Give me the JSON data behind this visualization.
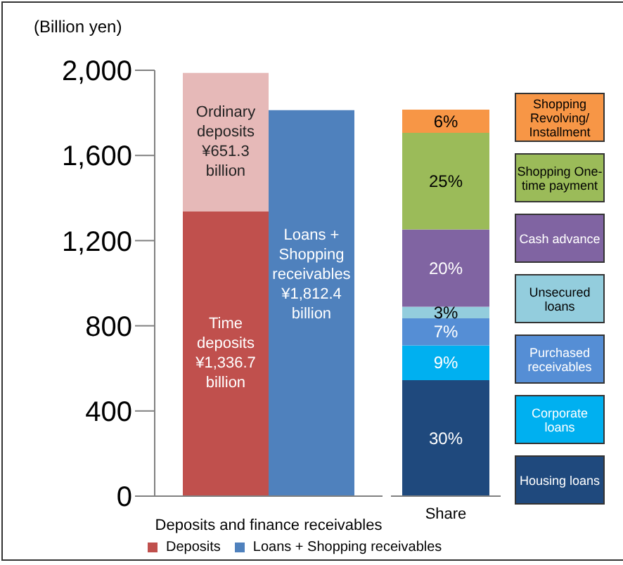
{
  "chart_data": [
    {
      "type": "bar",
      "ylabel": "(Billion yen)",
      "xlabel": "Deposits and finance receivables",
      "categories": [
        null,
        null
      ],
      "stacked": true,
      "ylim": [
        0,
        2000
      ],
      "yticks": [
        {
          "value": 0,
          "label": "0"
        },
        {
          "value": 400,
          "label": "400"
        },
        {
          "value": 800,
          "label": "800"
        },
        {
          "value": 1200,
          "label": "1,200"
        },
        {
          "value": 1600,
          "label": "1,600"
        },
        {
          "value": 2000,
          "label": "2,000"
        }
      ],
      "legend": "bottom",
      "annotations": [
        "Time deposits ¥1,336.7 billion",
        "Ordinary deposits ¥651.3 billion",
        "Loans + Shopping receivables ¥1,812.4 billion"
      ],
      "series": [
        {
          "name": "Deposits",
          "color": "#c0504d",
          "values": [
            1336.7,
            null
          ]
        },
        {
          "color": "#e6b9b8",
          "values": [
            651.3,
            null
          ]
        },
        {
          "name": "Loans + Shopping receivables",
          "color": "#4f81bd",
          "values": [
            null,
            1812.4
          ]
        }
      ]
    },
    {
      "type": "bar",
      "categories": [
        "Share"
      ],
      "stacked": true,
      "tick_labels": "x",
      "legend": "right",
      "series": [
        {
          "name": "Housing loans",
          "color": "#1f497d",
          "values": [
            30
          ],
          "value_labels": [
            "30%"
          ]
        },
        {
          "name": "Corporate loans",
          "color": "#00b0f0",
          "values": [
            9
          ],
          "value_labels": [
            "9%"
          ]
        },
        {
          "name": "Purchased receivables",
          "color": "#558ed5",
          "values": [
            7
          ],
          "value_labels": [
            "7%"
          ]
        },
        {
          "name": "Unsecured loans",
          "color": "#93cddd",
          "values": [
            3
          ],
          "value_labels": [
            "3%"
          ]
        },
        {
          "name": "Cash advance",
          "color": "#8064a2",
          "values": [
            20
          ],
          "value_labels": [
            "20%"
          ]
        },
        {
          "name": "Shopping One-time payment",
          "color": "#9bbb59",
          "values": [
            25
          ],
          "value_labels": [
            "25%"
          ]
        },
        {
          "name": "Shopping Revolving/Installment",
          "color": "#f79646",
          "values": [
            6
          ],
          "value_labels": [
            "6%"
          ]
        }
      ]
    }
  ]
}
